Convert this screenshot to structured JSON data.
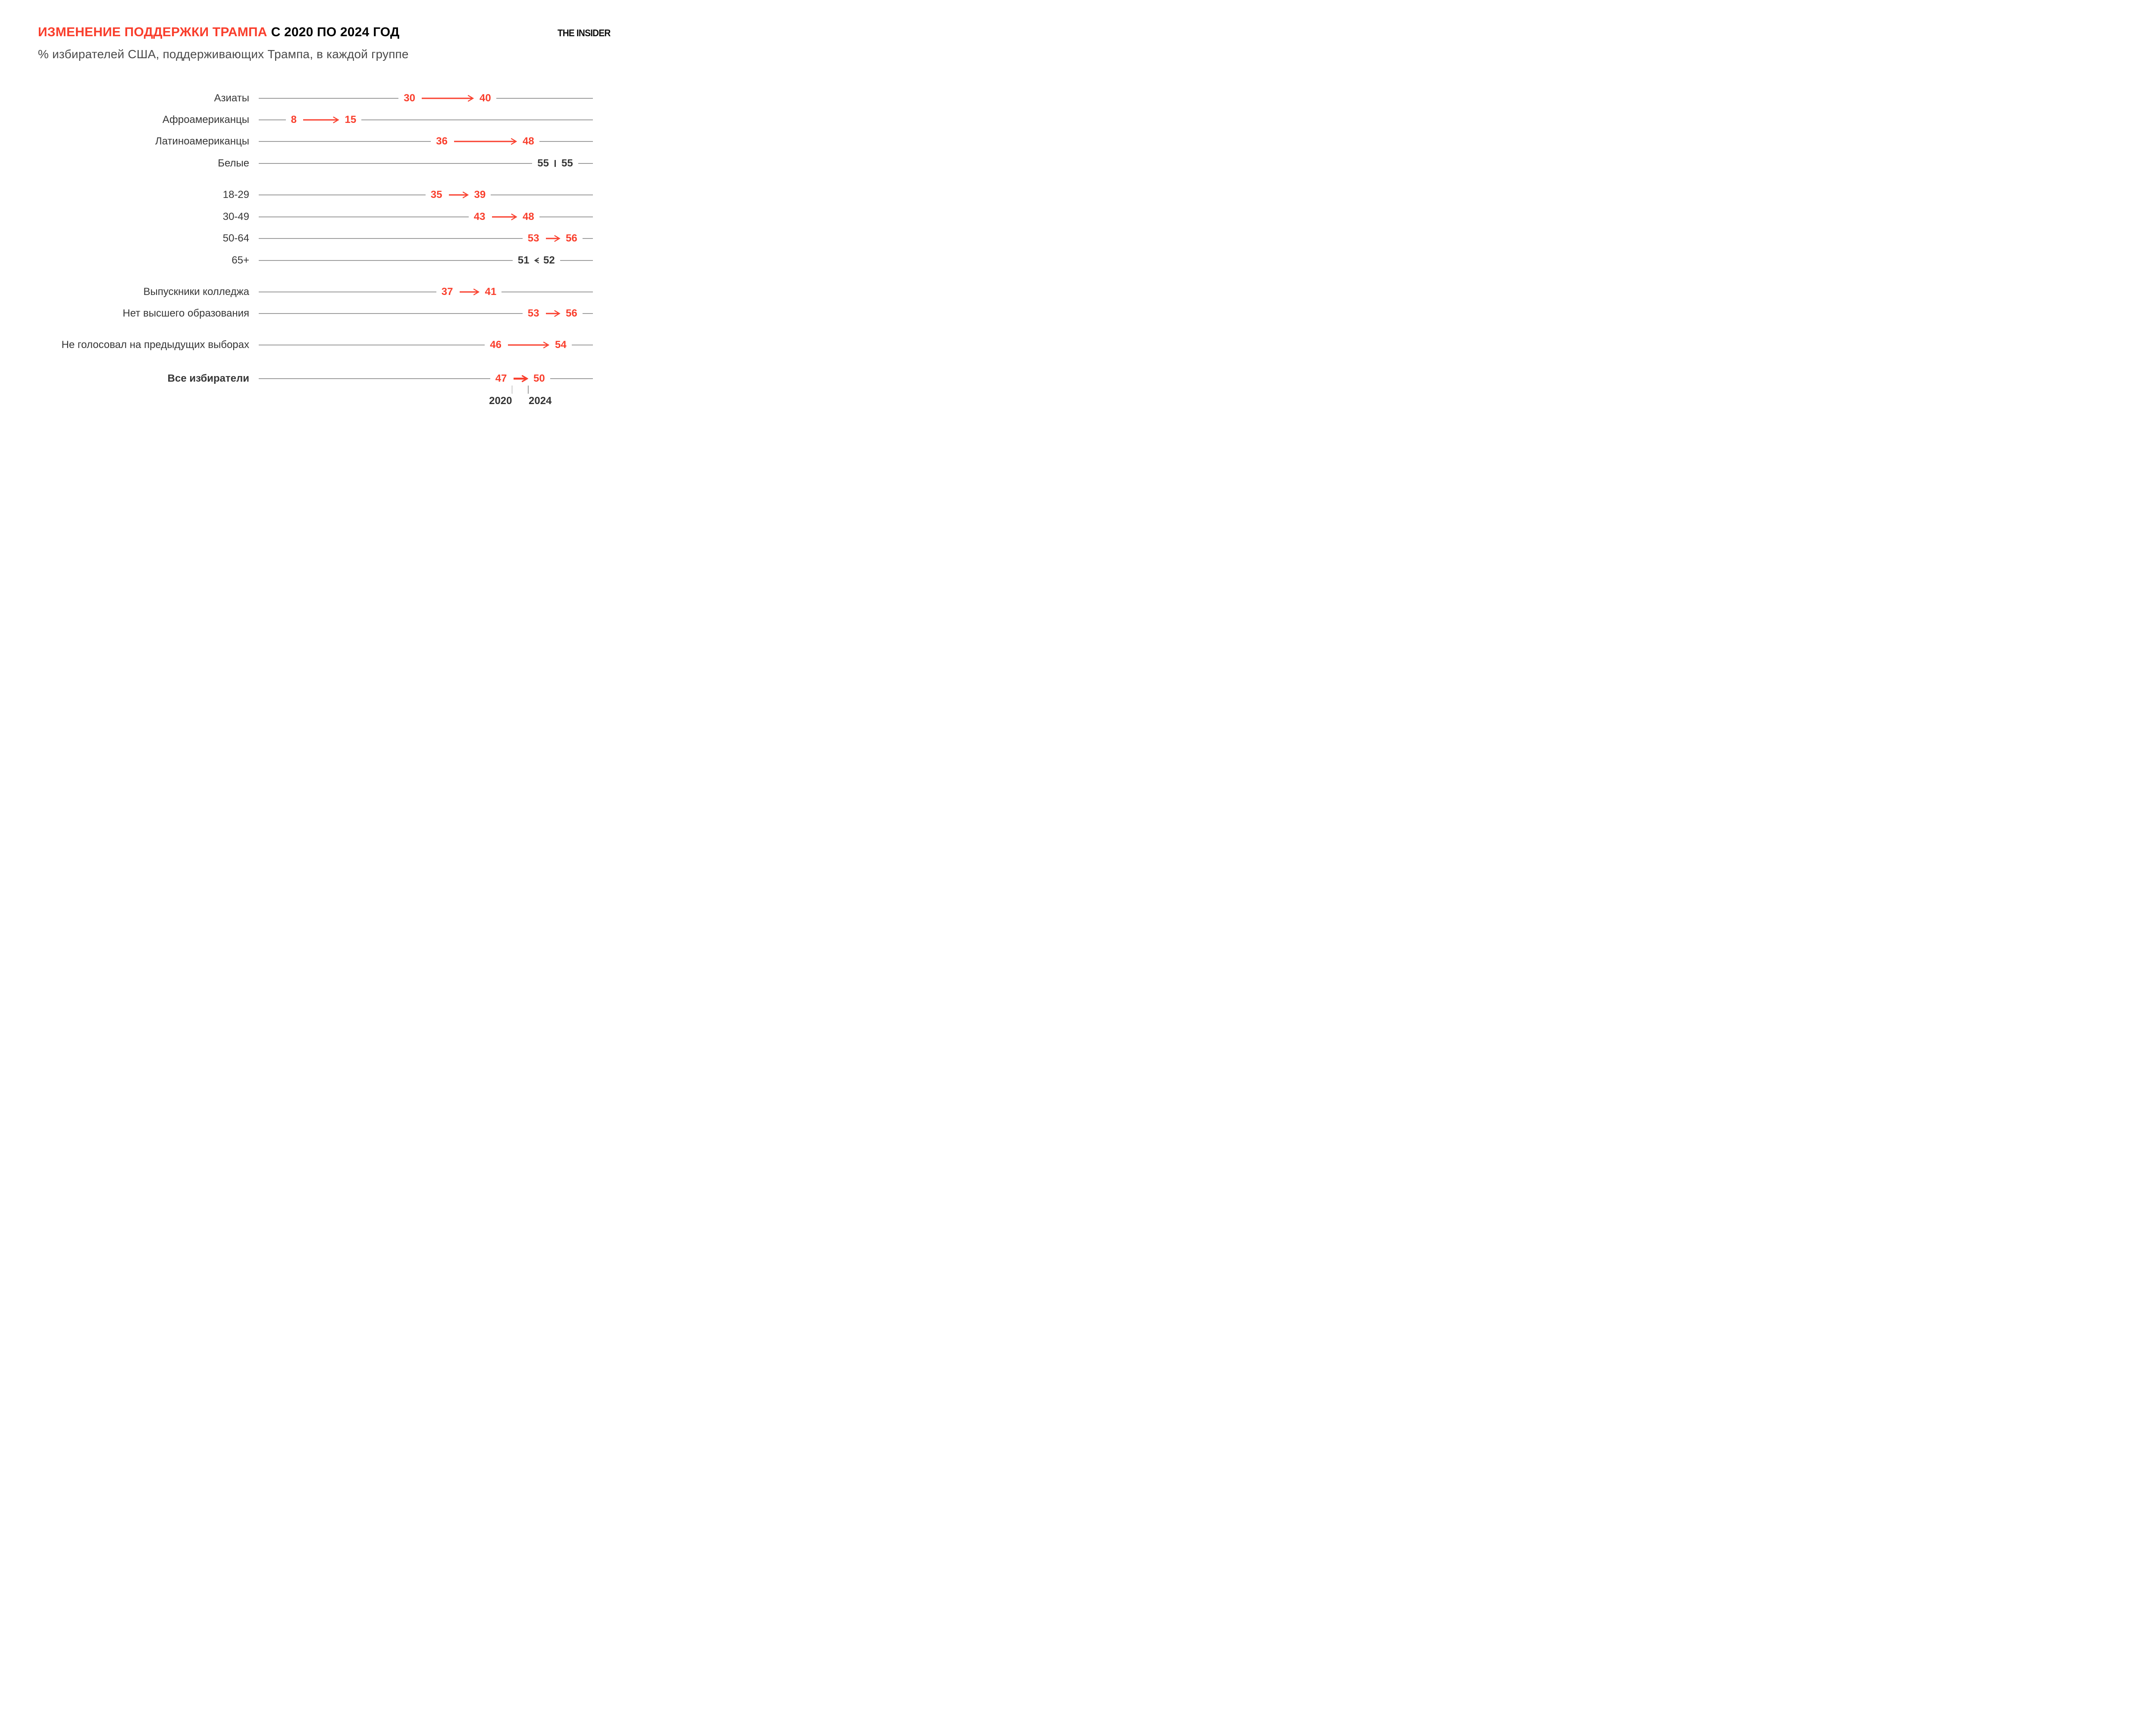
{
  "header": {
    "title_red": "ИЗМЕНЕНИЕ ПОДДЕРЖКИ ТРАМПА",
    "title_dark": "С 2020 ПО 2024 ГОД",
    "subtitle": "% избирателей США, поддерживающих Трампа, в каждой группе",
    "logo": "THE INSIDER"
  },
  "colors": {
    "accent": "#f93e2c",
    "text_dark": "#363636",
    "title_black": "#000000",
    "line_gray": "#9c9c9c"
  },
  "chart_data": {
    "type": "dumbbell-arrow",
    "title": "Изменение поддержки Трампа с 2020 по 2024 год",
    "subtitle": "% избирателей США, поддерживающих Трампа, в каждой группе",
    "value_unit": "percent",
    "xlim": [
      0,
      62
    ],
    "years": [
      "2020",
      "2024"
    ],
    "legend_note": "стрелка ведёт от значения 2020 к значению 2024",
    "sections": [
      {
        "rows": [
          {
            "label": "Азиаты",
            "from": 30,
            "to": 40,
            "trend": "up",
            "color": "red",
            "emphasis": false
          },
          {
            "label": "Афроамериканцы",
            "from": 8,
            "to": 15,
            "trend": "up",
            "color": "red",
            "emphasis": false
          },
          {
            "label": "Латиноамериканцы",
            "from": 36,
            "to": 48,
            "trend": "up",
            "color": "red",
            "emphasis": false
          },
          {
            "label": "Белые",
            "from": 55,
            "to": 55,
            "trend": "same",
            "color": "dark",
            "emphasis": false
          }
        ]
      },
      {
        "rows": [
          {
            "label": "18-29",
            "from": 35,
            "to": 39,
            "trend": "up",
            "color": "red",
            "emphasis": false
          },
          {
            "label": "30-49",
            "from": 43,
            "to": 48,
            "trend": "up",
            "color": "red",
            "emphasis": false
          },
          {
            "label": "50-64",
            "from": 53,
            "to": 56,
            "trend": "up",
            "color": "red",
            "emphasis": false
          },
          {
            "label": "65+",
            "from": 52,
            "to": 51,
            "trend": "down",
            "color": "dark",
            "emphasis": false
          }
        ]
      },
      {
        "rows": [
          {
            "label": "Выпускники колледжа",
            "from": 37,
            "to": 41,
            "trend": "up",
            "color": "red",
            "emphasis": false
          },
          {
            "label": "Нет высшего образования",
            "from": 53,
            "to": 56,
            "trend": "up",
            "color": "red",
            "emphasis": false
          }
        ]
      },
      {
        "rows": [
          {
            "label": "Не голосовал на предыдущих выборах",
            "from": 46,
            "to": 54,
            "trend": "up",
            "color": "red",
            "emphasis": false
          }
        ]
      },
      {
        "rows": [
          {
            "label": "Все избиратели",
            "from": 47,
            "to": 50,
            "trend": "up",
            "color": "red",
            "emphasis": true,
            "year_ticks": true
          }
        ]
      }
    ]
  }
}
